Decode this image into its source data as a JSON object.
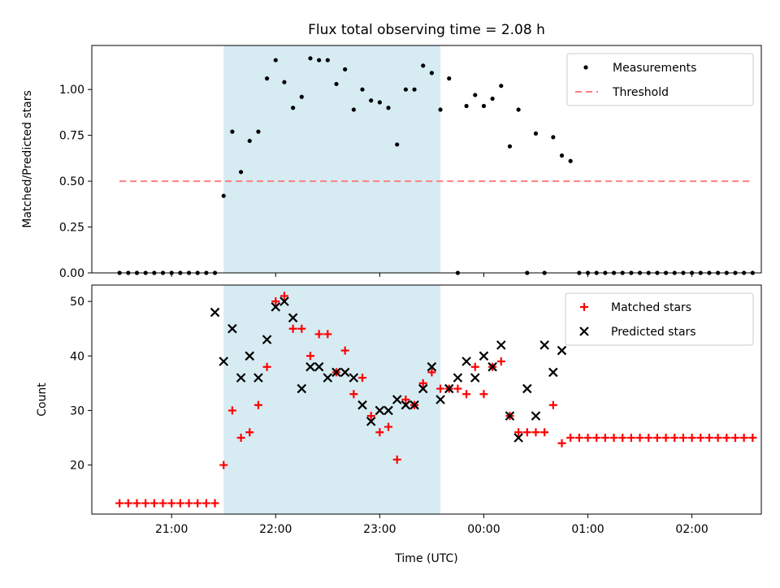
{
  "chart_data": [
    {
      "type": "scatter",
      "title": "Flux total observing time = 2.08 h",
      "xlabel": "",
      "ylabel": "Matched/Predicted stars",
      "ylim": [
        0,
        1.24
      ],
      "xlim": [
        "20:14",
        "02:40"
      ],
      "yticks": [
        "0.00",
        "0.25",
        "0.50",
        "0.75",
        "1.00"
      ],
      "legend_position": "top-right",
      "shaded_interval": [
        "21:30",
        "23:35"
      ],
      "series": [
        {
          "name": "Measurements",
          "marker": "dot",
          "color": "#000000",
          "x": [
            "20:30",
            "20:35",
            "20:40",
            "20:45",
            "20:50",
            "20:55",
            "21:00",
            "21:05",
            "21:10",
            "21:15",
            "21:20",
            "21:25",
            "21:30",
            "21:35",
            "21:40",
            "21:45",
            "21:50",
            "21:55",
            "22:00",
            "22:05",
            "22:10",
            "22:15",
            "22:20",
            "22:25",
            "22:30",
            "22:35",
            "22:40",
            "22:45",
            "22:50",
            "22:55",
            "23:00",
            "23:05",
            "23:10",
            "23:15",
            "23:20",
            "23:25",
            "23:30",
            "23:35",
            "23:40",
            "23:45",
            "23:50",
            "23:55",
            "00:00",
            "00:05",
            "00:10",
            "00:15",
            "00:20",
            "00:25",
            "00:30",
            "00:35",
            "00:40",
            "00:45",
            "00:50",
            "00:55",
            "01:00",
            "01:05",
            "01:10",
            "01:15",
            "01:20",
            "01:25",
            "01:30",
            "01:35",
            "01:40",
            "01:45",
            "01:50",
            "01:55",
            "02:00",
            "02:05",
            "02:10",
            "02:15",
            "02:20",
            "02:25",
            "02:30",
            "02:35"
          ],
          "y": [
            0,
            0,
            0,
            0,
            0,
            0,
            0,
            0,
            0,
            0,
            0,
            0,
            0.42,
            0.77,
            0.55,
            0.72,
            0.77,
            1.06,
            1.16,
            1.04,
            0.9,
            0.96,
            1.17,
            1.16,
            1.16,
            1.03,
            1.11,
            0.89,
            1.0,
            0.94,
            0.93,
            0.9,
            0.7,
            1.0,
            1.0,
            1.13,
            1.09,
            0.89,
            1.06,
            0,
            0.91,
            0.97,
            0.91,
            0.95,
            1.02,
            0.69,
            0.89,
            0,
            0.76,
            0,
            0.74,
            0.64,
            0.61,
            0,
            0,
            0,
            0,
            0,
            0,
            0,
            0,
            0,
            0,
            0,
            0,
            0,
            0,
            0,
            0,
            0,
            0,
            0,
            0,
            0
          ]
        },
        {
          "name": "Threshold",
          "style": "dashed",
          "color": "#ff7f7f",
          "x": [
            "20:30",
            "02:35"
          ],
          "y": [
            0.5,
            0.5
          ]
        }
      ]
    },
    {
      "type": "scatter",
      "title": "",
      "xlabel": "Time (UTC)",
      "ylabel": "Count",
      "ylim": [
        11,
        53
      ],
      "xlim": [
        "20:14",
        "02:40"
      ],
      "yticks": [
        "20",
        "30",
        "40",
        "50"
      ],
      "xticks": [
        "21:00",
        "22:00",
        "23:00",
        "00:00",
        "01:00",
        "02:00"
      ],
      "legend_position": "top-right",
      "shaded_interval": [
        "21:30",
        "23:35"
      ],
      "series": [
        {
          "name": "Matched stars",
          "marker": "plus",
          "color": "#ff0000",
          "x": [
            "20:30",
            "20:35",
            "20:40",
            "20:45",
            "20:50",
            "20:55",
            "21:00",
            "21:05",
            "21:10",
            "21:15",
            "21:20",
            "21:25",
            "21:30",
            "21:35",
            "21:40",
            "21:45",
            "21:50",
            "21:55",
            "22:00",
            "22:05",
            "22:10",
            "22:15",
            "22:20",
            "22:25",
            "22:30",
            "22:35",
            "22:40",
            "22:45",
            "22:50",
            "22:55",
            "23:00",
            "23:05",
            "23:10",
            "23:15",
            "23:20",
            "23:25",
            "23:30",
            "23:35",
            "23:40",
            "23:45",
            "23:50",
            "23:55",
            "00:00",
            "00:05",
            "00:10",
            "00:15",
            "00:20",
            "00:25",
            "00:30",
            "00:35",
            "00:40",
            "00:45",
            "00:50",
            "00:55",
            "01:00",
            "01:05",
            "01:10",
            "01:15",
            "01:20",
            "01:25",
            "01:30",
            "01:35",
            "01:40",
            "01:45",
            "01:50",
            "01:55",
            "02:00",
            "02:05",
            "02:10",
            "02:15",
            "02:20",
            "02:25",
            "02:30",
            "02:35"
          ],
          "y": [
            13,
            13,
            13,
            13,
            13,
            13,
            13,
            13,
            13,
            13,
            13,
            13,
            20,
            30,
            25,
            26,
            31,
            38,
            50,
            51,
            45,
            45,
            40,
            44,
            44,
            37,
            41,
            33,
            36,
            29,
            26,
            27,
            21,
            32,
            31,
            35,
            37,
            34,
            34,
            34,
            33,
            38,
            33,
            38,
            39,
            29,
            26,
            26,
            26,
            26,
            31,
            24,
            25,
            25,
            25,
            25,
            25,
            25,
            25,
            25,
            25,
            25,
            25,
            25,
            25,
            25,
            25,
            25,
            25,
            25,
            25,
            25,
            25,
            25
          ]
        },
        {
          "name": "Predicted stars",
          "marker": "x",
          "color": "#000000",
          "x": [
            "21:25",
            "21:30",
            "21:35",
            "21:40",
            "21:45",
            "21:50",
            "21:55",
            "22:00",
            "22:05",
            "22:10",
            "22:15",
            "22:20",
            "22:25",
            "22:30",
            "22:35",
            "22:40",
            "22:45",
            "22:50",
            "22:55",
            "23:00",
            "23:05",
            "23:10",
            "23:15",
            "23:20",
            "23:25",
            "23:30",
            "23:35",
            "23:40",
            "23:45",
            "23:50",
            "23:55",
            "00:00",
            "00:05",
            "00:10",
            "00:15",
            "00:20",
            "00:25",
            "00:30",
            "00:35",
            "00:40",
            "00:45"
          ],
          "y": [
            48,
            39,
            45,
            36,
            40,
            36,
            43,
            49,
            50,
            47,
            34,
            38,
            38,
            36,
            37,
            37,
            36,
            31,
            28,
            30,
            30,
            32,
            31,
            31,
            34,
            38,
            32,
            34,
            36,
            39,
            36,
            40,
            38,
            42,
            29,
            25,
            34,
            29,
            42,
            37,
            41
          ]
        }
      ]
    }
  ]
}
